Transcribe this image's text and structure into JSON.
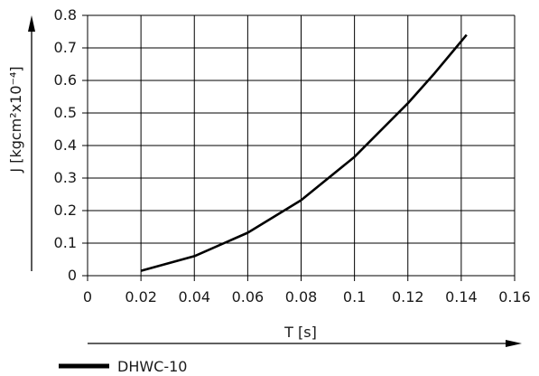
{
  "chart_data": {
    "type": "line",
    "title": "",
    "xlabel": "T [s]",
    "ylabel": "J [kgcm²x10⁻⁴]",
    "xlim": [
      0,
      0.16
    ],
    "ylim": [
      0,
      0.8
    ],
    "xticks": [
      "0",
      "0.02",
      "0.04",
      "0.06",
      "0.08",
      "0.1",
      "0.12",
      "0.14",
      "0.16"
    ],
    "yticks": [
      "0",
      "0.1",
      "0.2",
      "0.3",
      "0.4",
      "0.5",
      "0.6",
      "0.7",
      "0.8"
    ],
    "grid": true,
    "legend_position": "bottom-left",
    "series": [
      {
        "name": "DHWC-10",
        "color": "#000000",
        "x": [
          0.02,
          0.04,
          0.06,
          0.08,
          0.1,
          0.12,
          0.13,
          0.142
        ],
        "y": [
          0.015,
          0.06,
          0.132,
          0.232,
          0.365,
          0.53,
          0.622,
          0.74
        ]
      }
    ]
  }
}
